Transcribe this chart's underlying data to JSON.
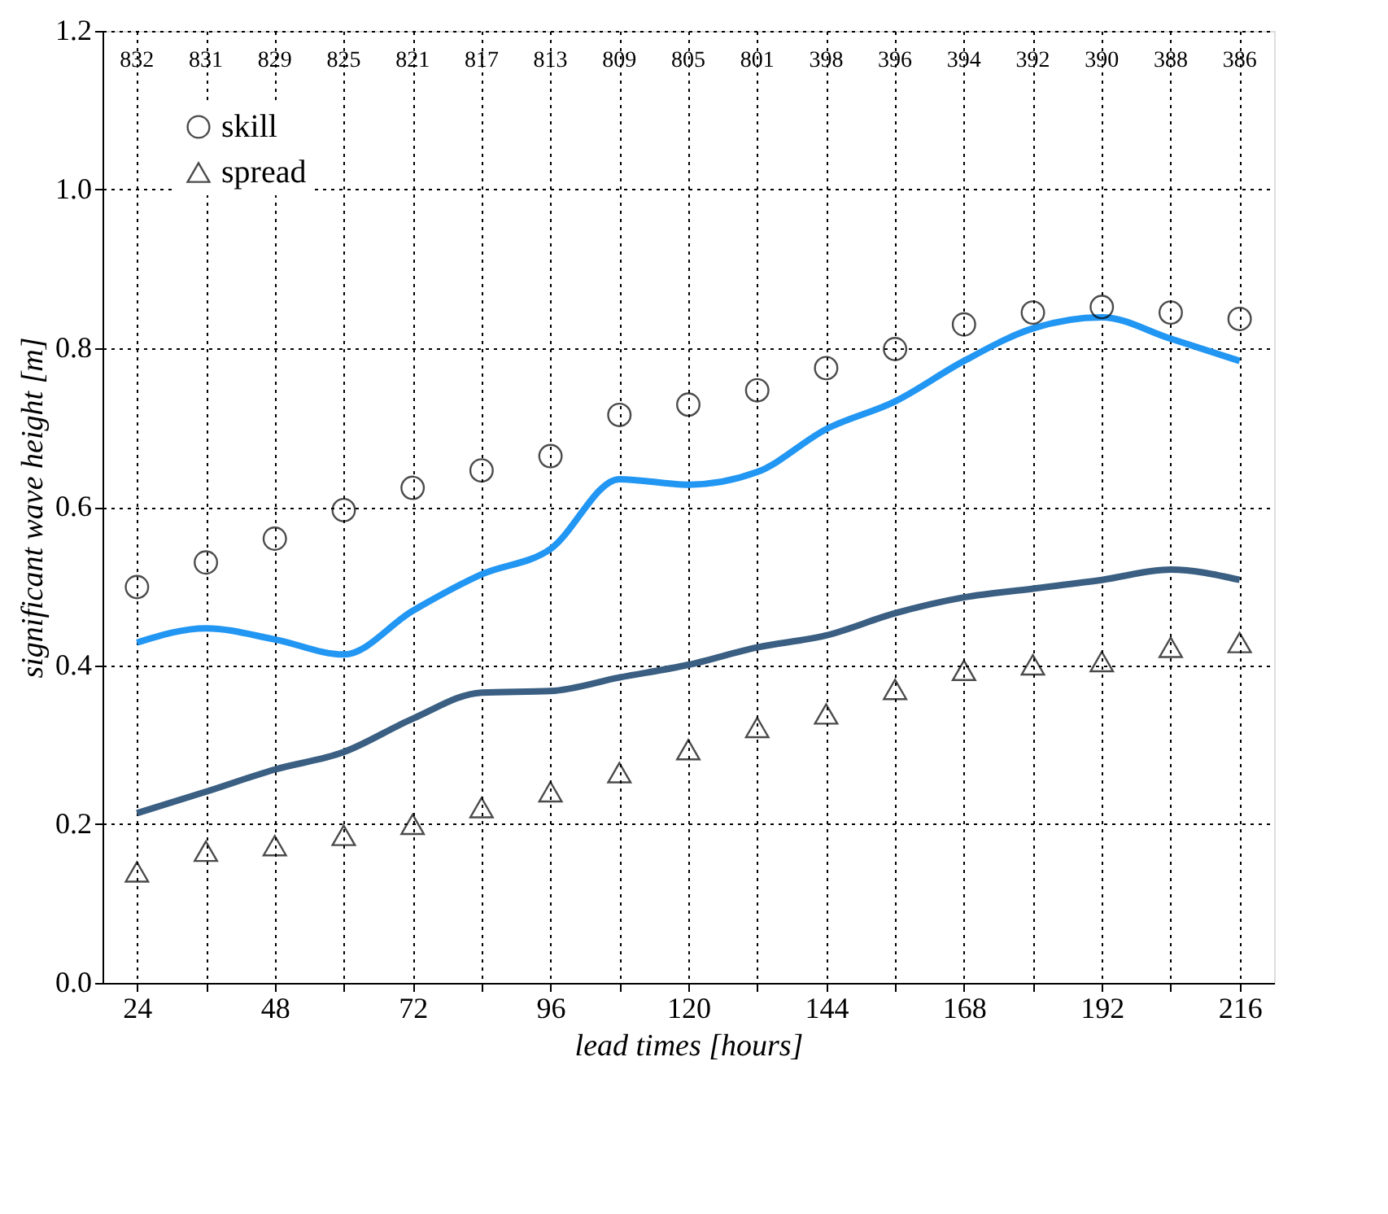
{
  "chart_data": {
    "type": "scatter",
    "xlabel": "lead times [hours]",
    "ylabel": "significant wave height [m]",
    "x": [
      24,
      36,
      48,
      60,
      72,
      84,
      96,
      108,
      120,
      132,
      144,
      156,
      168,
      180,
      192,
      204,
      216
    ],
    "series": [
      {
        "name": "skill",
        "marker": "circle",
        "color": "#000000",
        "values": [
          0.499,
          0.53,
          0.56,
          0.596,
          0.624,
          0.646,
          0.664,
          0.716,
          0.729,
          0.747,
          0.775,
          0.799,
          0.83,
          0.845,
          0.852,
          0.845,
          0.837
        ]
      },
      {
        "name": "spread",
        "marker": "triangle",
        "color": "#000000",
        "values": [
          0.14,
          0.166,
          0.173,
          0.186,
          0.2,
          0.221,
          0.241,
          0.265,
          0.294,
          0.322,
          0.339,
          0.37,
          0.394,
          0.401,
          0.405,
          0.423,
          0.429
        ]
      },
      {
        "type": "line",
        "color": "#2196f3",
        "line_style": "solid",
        "values": [
          0.429,
          0.447,
          0.433,
          0.414,
          0.469,
          0.515,
          0.547,
          0.635,
          0.628,
          0.644,
          0.698,
          0.733,
          0.784,
          0.825,
          0.839,
          0.812,
          0.784
        ]
      },
      {
        "type": "line",
        "color": "#3a5f82",
        "line_style": "solid",
        "values": [
          0.214,
          0.241,
          0.269,
          0.291,
          0.333,
          0.366,
          0.368,
          0.385,
          0.401,
          0.423,
          0.438,
          0.466,
          0.486,
          0.497,
          0.508,
          0.521,
          0.508
        ]
      }
    ],
    "annotations": [
      "832",
      "831",
      "829",
      "825",
      "821",
      "817",
      "813",
      "809",
      "805",
      "801",
      "398",
      "396",
      "394",
      "392",
      "390",
      "388",
      "386"
    ],
    "xlim": [
      18,
      222
    ],
    "xticks": [
      24,
      {
        "value": 36,
        "label": null
      },
      48,
      {
        "value": 60,
        "label": null
      },
      72,
      {
        "value": 84,
        "label": null
      },
      96,
      {
        "value": 108,
        "label": null
      },
      120,
      {
        "value": 132,
        "label": null
      },
      144,
      {
        "value": 156,
        "label": null
      },
      168,
      {
        "value": 180,
        "label": null
      },
      192,
      {
        "value": 204,
        "label": null
      },
      216
    ],
    "ylim": [
      0,
      1.2
    ],
    "yticks": [
      {
        "value": 0,
        "label": "0.0"
      },
      {
        "value": 0.2,
        "label": "0.2"
      },
      {
        "value": 0.4,
        "label": "0.4"
      },
      {
        "value": 0.6,
        "label": "0.6"
      },
      {
        "value": 0.8,
        "label": "0.8"
      },
      {
        "value": 1.0,
        "label": "1.0"
      },
      {
        "value": 1.2,
        "label": "1.2"
      }
    ],
    "grid": true,
    "legend": "top left"
  }
}
